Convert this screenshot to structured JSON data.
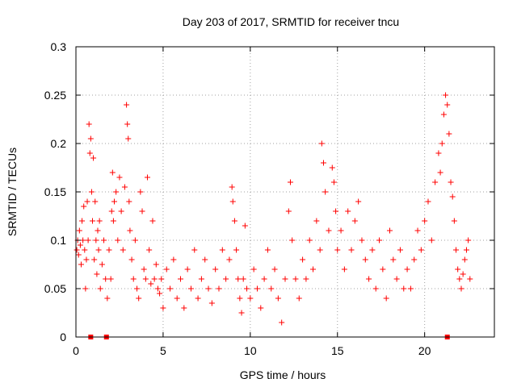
{
  "chart_data": {
    "type": "scatter",
    "title": "Day 203 of 2017, SRMTID for receiver tncu",
    "xlabel": "GPS time / hours",
    "ylabel": "SRMTID / TECUs",
    "xlim": [
      0,
      24
    ],
    "ylim": [
      0,
      0.3
    ],
    "x_ticks": [
      0,
      5,
      10,
      15,
      20
    ],
    "x_tick_labels": [
      "0",
      "5",
      "10",
      "15",
      "20"
    ],
    "y_ticks": [
      0,
      0.05,
      0.1,
      0.15,
      0.2,
      0.25,
      0.3
    ],
    "y_tick_labels": [
      "0",
      "0.05",
      "0.1",
      "0.15",
      "0.2",
      "0.25",
      "0.3"
    ],
    "grid": true,
    "marker": "plus",
    "color": "#ff0000",
    "zero_markers_x": [
      0.85,
      1.75,
      21.3
    ],
    "series": [
      {
        "points": [
          [
            0.05,
            0.09
          ],
          [
            0.1,
            0.1
          ],
          [
            0.15,
            0.085
          ],
          [
            0.2,
            0.11
          ],
          [
            0.25,
            0.095
          ],
          [
            0.3,
            0.075
          ],
          [
            0.35,
            0.12
          ],
          [
            0.4,
            0.1
          ],
          [
            0.45,
            0.135
          ],
          [
            0.5,
            0.09
          ],
          [
            0.55,
            0.05
          ],
          [
            0.6,
            0.08
          ],
          [
            0.65,
            0.14
          ],
          [
            0.7,
            0.1
          ],
          [
            0.75,
            0.22
          ],
          [
            0.8,
            0.19
          ],
          [
            0.85,
            0.205
          ],
          [
            0.9,
            0.15
          ],
          [
            0.95,
            0.12
          ],
          [
            1.0,
            0.185
          ],
          [
            1.05,
            0.08
          ],
          [
            1.1,
            0.14
          ],
          [
            1.15,
            0.1
          ],
          [
            1.2,
            0.065
          ],
          [
            1.25,
            0.11
          ],
          [
            1.3,
            0.09
          ],
          [
            1.35,
            0.12
          ],
          [
            1.4,
            0.05
          ],
          [
            1.5,
            0.075
          ],
          [
            1.6,
            0.1
          ],
          [
            1.7,
            0.06
          ],
          [
            1.8,
            0.04
          ],
          [
            1.9,
            0.09
          ],
          [
            2.0,
            0.06
          ],
          [
            2.05,
            0.13
          ],
          [
            2.1,
            0.17
          ],
          [
            2.15,
            0.12
          ],
          [
            2.2,
            0.14
          ],
          [
            2.3,
            0.15
          ],
          [
            2.4,
            0.1
          ],
          [
            2.5,
            0.165
          ],
          [
            2.6,
            0.13
          ],
          [
            2.7,
            0.09
          ],
          [
            2.8,
            0.155
          ],
          [
            2.9,
            0.24
          ],
          [
            2.95,
            0.22
          ],
          [
            3.0,
            0.205
          ],
          [
            3.05,
            0.14
          ],
          [
            3.1,
            0.11
          ],
          [
            3.2,
            0.08
          ],
          [
            3.3,
            0.06
          ],
          [
            3.4,
            0.1
          ],
          [
            3.5,
            0.05
          ],
          [
            3.6,
            0.04
          ],
          [
            3.7,
            0.15
          ],
          [
            3.8,
            0.13
          ],
          [
            3.9,
            0.07
          ],
          [
            4.0,
            0.06
          ],
          [
            4.1,
            0.165
          ],
          [
            4.2,
            0.09
          ],
          [
            4.3,
            0.055
          ],
          [
            4.4,
            0.12
          ],
          [
            4.5,
            0.06
          ],
          [
            4.6,
            0.075
          ],
          [
            4.7,
            0.05
          ],
          [
            4.8,
            0.045
          ],
          [
            4.9,
            0.06
          ],
          [
            5.0,
            0.03
          ],
          [
            5.2,
            0.07
          ],
          [
            5.4,
            0.05
          ],
          [
            5.6,
            0.08
          ],
          [
            5.8,
            0.04
          ],
          [
            6.0,
            0.06
          ],
          [
            6.2,
            0.03
          ],
          [
            6.4,
            0.07
          ],
          [
            6.6,
            0.05
          ],
          [
            6.8,
            0.09
          ],
          [
            7.0,
            0.04
          ],
          [
            7.2,
            0.06
          ],
          [
            7.4,
            0.08
          ],
          [
            7.6,
            0.05
          ],
          [
            7.8,
            0.035
          ],
          [
            8.0,
            0.07
          ],
          [
            8.2,
            0.05
          ],
          [
            8.4,
            0.09
          ],
          [
            8.6,
            0.06
          ],
          [
            8.8,
            0.08
          ],
          [
            8.95,
            0.155
          ],
          [
            9.0,
            0.14
          ],
          [
            9.1,
            0.12
          ],
          [
            9.2,
            0.09
          ],
          [
            9.3,
            0.06
          ],
          [
            9.4,
            0.04
          ],
          [
            9.5,
            0.025
          ],
          [
            9.6,
            0.06
          ],
          [
            9.7,
            0.115
          ],
          [
            9.8,
            0.05
          ],
          [
            10.0,
            0.04
          ],
          [
            10.2,
            0.07
          ],
          [
            10.4,
            0.05
          ],
          [
            10.6,
            0.03
          ],
          [
            10.8,
            0.06
          ],
          [
            11.0,
            0.09
          ],
          [
            11.2,
            0.05
          ],
          [
            11.4,
            0.07
          ],
          [
            11.6,
            0.04
          ],
          [
            11.8,
            0.015
          ],
          [
            12.0,
            0.06
          ],
          [
            12.2,
            0.13
          ],
          [
            12.3,
            0.16
          ],
          [
            12.4,
            0.1
          ],
          [
            12.6,
            0.06
          ],
          [
            12.8,
            0.04
          ],
          [
            13.0,
            0.08
          ],
          [
            13.2,
            0.06
          ],
          [
            13.4,
            0.1
          ],
          [
            13.6,
            0.07
          ],
          [
            13.8,
            0.12
          ],
          [
            14.0,
            0.09
          ],
          [
            14.1,
            0.2
          ],
          [
            14.2,
            0.18
          ],
          [
            14.3,
            0.15
          ],
          [
            14.5,
            0.11
          ],
          [
            14.7,
            0.175
          ],
          [
            14.8,
            0.16
          ],
          [
            14.9,
            0.13
          ],
          [
            15.0,
            0.09
          ],
          [
            15.2,
            0.11
          ],
          [
            15.4,
            0.07
          ],
          [
            15.6,
            0.13
          ],
          [
            15.8,
            0.09
          ],
          [
            16.0,
            0.12
          ],
          [
            16.2,
            0.14
          ],
          [
            16.4,
            0.1
          ],
          [
            16.6,
            0.08
          ],
          [
            16.8,
            0.06
          ],
          [
            17.0,
            0.09
          ],
          [
            17.2,
            0.05
          ],
          [
            17.4,
            0.1
          ],
          [
            17.6,
            0.07
          ],
          [
            17.8,
            0.04
          ],
          [
            18.0,
            0.11
          ],
          [
            18.2,
            0.08
          ],
          [
            18.4,
            0.06
          ],
          [
            18.6,
            0.09
          ],
          [
            18.8,
            0.05
          ],
          [
            19.0,
            0.07
          ],
          [
            19.2,
            0.05
          ],
          [
            19.4,
            0.08
          ],
          [
            19.6,
            0.11
          ],
          [
            19.8,
            0.09
          ],
          [
            20.0,
            0.12
          ],
          [
            20.2,
            0.14
          ],
          [
            20.4,
            0.1
          ],
          [
            20.6,
            0.16
          ],
          [
            20.8,
            0.19
          ],
          [
            20.9,
            0.17
          ],
          [
            21.0,
            0.2
          ],
          [
            21.1,
            0.23
          ],
          [
            21.2,
            0.25
          ],
          [
            21.3,
            0.24
          ],
          [
            21.4,
            0.21
          ],
          [
            21.5,
            0.16
          ],
          [
            21.6,
            0.145
          ],
          [
            21.7,
            0.12
          ],
          [
            21.8,
            0.09
          ],
          [
            21.9,
            0.07
          ],
          [
            22.0,
            0.06
          ],
          [
            22.1,
            0.05
          ],
          [
            22.2,
            0.065
          ],
          [
            22.3,
            0.08
          ],
          [
            22.4,
            0.09
          ],
          [
            22.5,
            0.1
          ],
          [
            22.6,
            0.06
          ]
        ]
      }
    ]
  }
}
